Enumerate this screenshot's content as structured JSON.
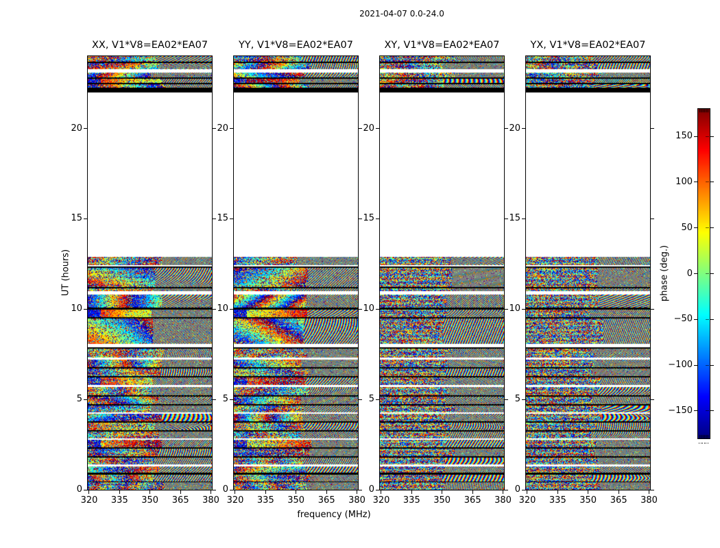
{
  "figure": {
    "title": "2021-04-07 0.0-24.0",
    "background": "#ffffff"
  },
  "subplots": [
    {
      "title": "XX, V1*V8=EA02*EA07",
      "polarization": "XX",
      "baseline": "V1*V8=EA02*EA07"
    },
    {
      "title": "YY, V1*V8=EA02*EA07",
      "polarization": "YY",
      "baseline": "V1*V8=EA02*EA07"
    },
    {
      "title": "XY, V1*V8=EA02*EA07",
      "polarization": "XY",
      "baseline": "V1*V8=EA02*EA07"
    },
    {
      "title": "YX, V1*V8=EA02*EA07",
      "polarization": "YX",
      "baseline": "V1*V8=EA02*EA07"
    }
  ],
  "axes": {
    "xlabel": "frequency (MHz)",
    "ylabel": "UT (hours)",
    "xticks": [
      320,
      335,
      350,
      365,
      380
    ],
    "yticks": [
      0,
      5,
      10,
      15,
      20
    ],
    "xlim": [
      318.5,
      380.1
    ],
    "ylim": [
      0,
      24
    ]
  },
  "colorbar": {
    "label": "phase (deg.)",
    "ticks": [
      150,
      100,
      50,
      0,
      -50,
      -100,
      -150
    ],
    "vmin": -180,
    "vmax": 180,
    "colormap": "jet"
  },
  "chart_data": {
    "type": "heatmap",
    "title": "2021-04-07 0.0-24.0",
    "panels": [
      "XX, V1*V8=EA02*EA07",
      "YY, V1*V8=EA02*EA07",
      "XY, V1*V8=EA02*EA07",
      "YX, V1*V8=EA02*EA07"
    ],
    "x_axis": {
      "label": "frequency (MHz)",
      "range": [
        318.5,
        380.1
      ],
      "ticks": [
        320,
        335,
        350,
        365,
        380
      ]
    },
    "y_axis": {
      "label": "UT (hours)",
      "range": [
        0,
        24
      ],
      "ticks": [
        0,
        5,
        10,
        15,
        20
      ]
    },
    "color_axis": {
      "label": "phase (deg.)",
      "range": [
        -180,
        180
      ],
      "ticks": [
        -150,
        -100,
        -50,
        0,
        50,
        100,
        150
      ],
      "colormap": "jet"
    },
    "data_present_ut_ranges": [
      [
        0.0,
        12.9
      ],
      [
        22.0,
        24.0
      ]
    ],
    "no_data_ut_ranges": [
      [
        12.9,
        22.0
      ]
    ],
    "description": "Phase vs frequency vs time waterfall; random-looking wrapped phase (jet colormap) in horizontal time bands separated by thin black flagged rows and white gaps; XX/YY show smooth warm phase blobs near UT 8-12h on low frequencies; right half of band shows fine fringe moire.",
    "band_format": [
      "ut_start",
      "ut_end",
      "kind(n=noise,b=black,w=white)",
      "smoothness",
      "warm_blob"
    ],
    "bands": [
      [
        23.7,
        24.0,
        "n",
        0.35,
        0
      ],
      [
        23.62,
        23.7,
        "b",
        0,
        0
      ],
      [
        23.28,
        23.62,
        "n",
        0.55,
        0
      ],
      [
        23.09,
        23.28,
        "w",
        0,
        0
      ],
      [
        22.82,
        23.09,
        "n",
        0.6,
        0
      ],
      [
        22.75,
        22.82,
        "b",
        0,
        0
      ],
      [
        22.52,
        22.75,
        "n",
        0.65,
        1
      ],
      [
        22.44,
        22.52,
        "b",
        0,
        0
      ],
      [
        22.25,
        22.44,
        "n",
        0.6,
        0
      ],
      [
        22.0,
        22.25,
        "b",
        0,
        0
      ],
      [
        12.9,
        22.0,
        "w",
        0,
        0
      ],
      [
        12.44,
        12.9,
        "n",
        0.3,
        0
      ],
      [
        12.36,
        12.44,
        "w",
        0,
        0
      ],
      [
        12.3,
        12.36,
        "b",
        0,
        0
      ],
      [
        11.24,
        12.3,
        "n",
        0.45,
        0
      ],
      [
        11.13,
        11.24,
        "b",
        0,
        0
      ],
      [
        10.98,
        11.13,
        "n",
        0.3,
        0
      ],
      [
        10.82,
        10.98,
        "w",
        0,
        0
      ],
      [
        10.1,
        10.82,
        "n",
        0.6,
        0
      ],
      [
        9.99,
        10.1,
        "b",
        0,
        0
      ],
      [
        9.57,
        9.99,
        "n",
        0.8,
        1
      ],
      [
        9.46,
        9.57,
        "b",
        0,
        0
      ],
      [
        8.09,
        9.46,
        "n",
        0.55,
        0
      ],
      [
        7.9,
        8.09,
        "w",
        0,
        0
      ],
      [
        7.82,
        7.9,
        "b",
        0,
        0
      ],
      [
        7.56,
        7.82,
        "n",
        0.25,
        0
      ],
      [
        7.3,
        7.56,
        "n",
        0.3,
        0
      ],
      [
        7.22,
        7.3,
        "w",
        0,
        0
      ],
      [
        6.8,
        7.22,
        "n",
        0.5,
        0
      ],
      [
        6.72,
        6.8,
        "b",
        0,
        0
      ],
      [
        6.3,
        6.72,
        "n",
        0.3,
        0
      ],
      [
        6.22,
        6.3,
        "b",
        0,
        0
      ],
      [
        5.8,
        6.22,
        "n",
        0.55,
        1
      ],
      [
        5.7,
        5.8,
        "w",
        0,
        0
      ],
      [
        5.25,
        5.7,
        "n",
        0.35,
        0
      ],
      [
        5.17,
        5.25,
        "b",
        0,
        0
      ],
      [
        4.75,
        5.17,
        "n",
        0.5,
        0
      ],
      [
        4.67,
        4.75,
        "b",
        0,
        0
      ],
      [
        4.3,
        4.67,
        "n",
        0.3,
        0
      ],
      [
        4.22,
        4.3,
        "w",
        0,
        0
      ],
      [
        3.8,
        4.22,
        "n",
        0.5,
        0
      ],
      [
        3.72,
        3.8,
        "b",
        0,
        0
      ],
      [
        3.3,
        3.72,
        "n",
        0.35,
        0
      ],
      [
        3.22,
        3.3,
        "b",
        0,
        0
      ],
      [
        2.85,
        3.22,
        "n",
        0.3,
        0
      ],
      [
        2.77,
        2.85,
        "w",
        0,
        0
      ],
      [
        2.35,
        2.77,
        "n",
        0.55,
        1
      ],
      [
        2.27,
        2.35,
        "b",
        0,
        0
      ],
      [
        1.85,
        2.27,
        "n",
        0.35,
        0
      ],
      [
        1.77,
        1.85,
        "b",
        0,
        0
      ],
      [
        1.4,
        1.77,
        "n",
        0.3,
        0
      ],
      [
        1.3,
        1.4,
        "w",
        0,
        0
      ],
      [
        0.95,
        1.3,
        "n",
        0.5,
        0
      ],
      [
        0.85,
        0.95,
        "b",
        0,
        0
      ],
      [
        0.45,
        0.85,
        "n",
        0.35,
        0
      ],
      [
        0.4,
        0.45,
        "b",
        0,
        0
      ],
      [
        0.0,
        0.4,
        "n",
        0.3,
        0
      ]
    ]
  }
}
